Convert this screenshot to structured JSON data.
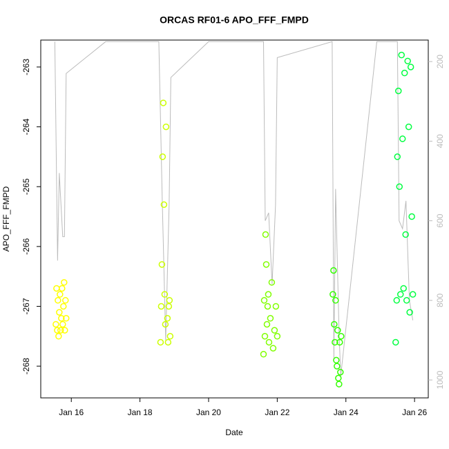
{
  "chart_data": {
    "type": "scatter",
    "title": "ORCAS RF01-6 APO_FFF_FMPD",
    "x_label": "Date",
    "y_label": "APO_FFF_FMPD",
    "xlim": [
      15.11,
      26.4
    ],
    "xticks": [
      {
        "value": 16,
        "label": "Jan 16"
      },
      {
        "value": 18,
        "label": "Jan 18"
      },
      {
        "value": 20,
        "label": "Jan 20"
      },
      {
        "value": 22,
        "label": "Jan 22"
      },
      {
        "value": 24,
        "label": "Jan 24"
      },
      {
        "value": 26,
        "label": "Jan 26"
      }
    ],
    "ylim": [
      -268.53,
      -262.55
    ],
    "yticks": [
      -268,
      -267,
      -266,
      -265,
      -264,
      -263
    ],
    "y2lim": [
      1045,
      146
    ],
    "y2ticks": [
      200,
      400,
      600,
      800,
      1000
    ],
    "series": [
      {
        "color": "#ffff00",
        "x": [
          15.55,
          15.57,
          15.59,
          15.61,
          15.63,
          15.65,
          15.67,
          15.69,
          15.71,
          15.73,
          15.75,
          15.77,
          15.79,
          15.81,
          15.83,
          15.85
        ],
        "values": [
          -267.3,
          -266.7,
          -267.4,
          -266.9,
          -267.5,
          -267.1,
          -266.8,
          -267.4,
          -267.2,
          -266.7,
          -267.3,
          -267.0,
          -266.6,
          -267.4,
          -266.9,
          -267.2
        ]
      },
      {
        "color": "#ccff00",
        "x": [
          18.6,
          18.62,
          18.64,
          18.66,
          18.68,
          18.7,
          18.72,
          18.74,
          18.76,
          18.8,
          18.82,
          18.84,
          18.86,
          18.88
        ],
        "values": [
          -267.6,
          -267.0,
          -266.3,
          -264.5,
          -263.6,
          -265.3,
          -266.8,
          -267.3,
          -264.0,
          -267.2,
          -267.6,
          -267.0,
          -266.9,
          -267.5
        ]
      },
      {
        "color": "#80ff00",
        "x": [
          21.6,
          21.62,
          21.64,
          21.66,
          21.68,
          21.7,
          21.72,
          21.74,
          21.76,
          21.8,
          21.84,
          21.88,
          21.92,
          21.96,
          22.0
        ],
        "values": [
          -267.8,
          -266.9,
          -267.5,
          -265.8,
          -266.3,
          -267.3,
          -267.0,
          -266.8,
          -267.6,
          -267.2,
          -266.6,
          -267.7,
          -267.4,
          -267.0,
          -267.5
        ]
      },
      {
        "color": "#33ff00",
        "x": [
          23.62,
          23.64,
          23.66,
          23.68,
          23.7,
          23.72,
          23.74,
          23.76,
          23.78,
          23.8,
          23.82,
          23.84,
          23.86
        ],
        "values": [
          -266.8,
          -266.4,
          -267.3,
          -267.6,
          -266.9,
          -267.9,
          -268.0,
          -267.4,
          -268.2,
          -268.3,
          -267.6,
          -268.1,
          -267.5
        ]
      },
      {
        "color": "#00ff40",
        "x": [
          25.45,
          25.48,
          25.5,
          25.53,
          25.56,
          25.59,
          25.62,
          25.65,
          25.68,
          25.71,
          25.74,
          25.77,
          25.8,
          25.83,
          25.86,
          25.89,
          25.92,
          25.95
        ],
        "values": [
          -267.6,
          -266.9,
          -264.5,
          -263.4,
          -265.0,
          -266.8,
          -262.8,
          -264.2,
          -266.7,
          -263.1,
          -265.8,
          -266.9,
          -262.9,
          -264.0,
          -267.1,
          -263.0,
          -265.5,
          -266.8
        ]
      },
      {
        "type": "line",
        "axis": "y2",
        "color": "#bbbbbb",
        "x": [
          15.52,
          15.6,
          15.65,
          15.75,
          15.8,
          15.85,
          17.0,
          18.55,
          18.65,
          18.75,
          18.85,
          18.9,
          20.0,
          21.6,
          21.65,
          21.75,
          21.85,
          21.95,
          22.0,
          23.6,
          23.65,
          23.7,
          23.8,
          23.85,
          24.9,
          25.5,
          25.55,
          25.65,
          25.75,
          25.85,
          25.95
        ],
        "values": [
          150,
          700,
          480,
          640,
          640,
          230,
          150,
          150,
          550,
          900,
          560,
          240,
          150,
          150,
          600,
          580,
          760,
          560,
          190,
          150,
          950,
          520,
          880,
          990,
          150,
          150,
          600,
          620,
          550,
          800,
          850
        ]
      }
    ]
  }
}
